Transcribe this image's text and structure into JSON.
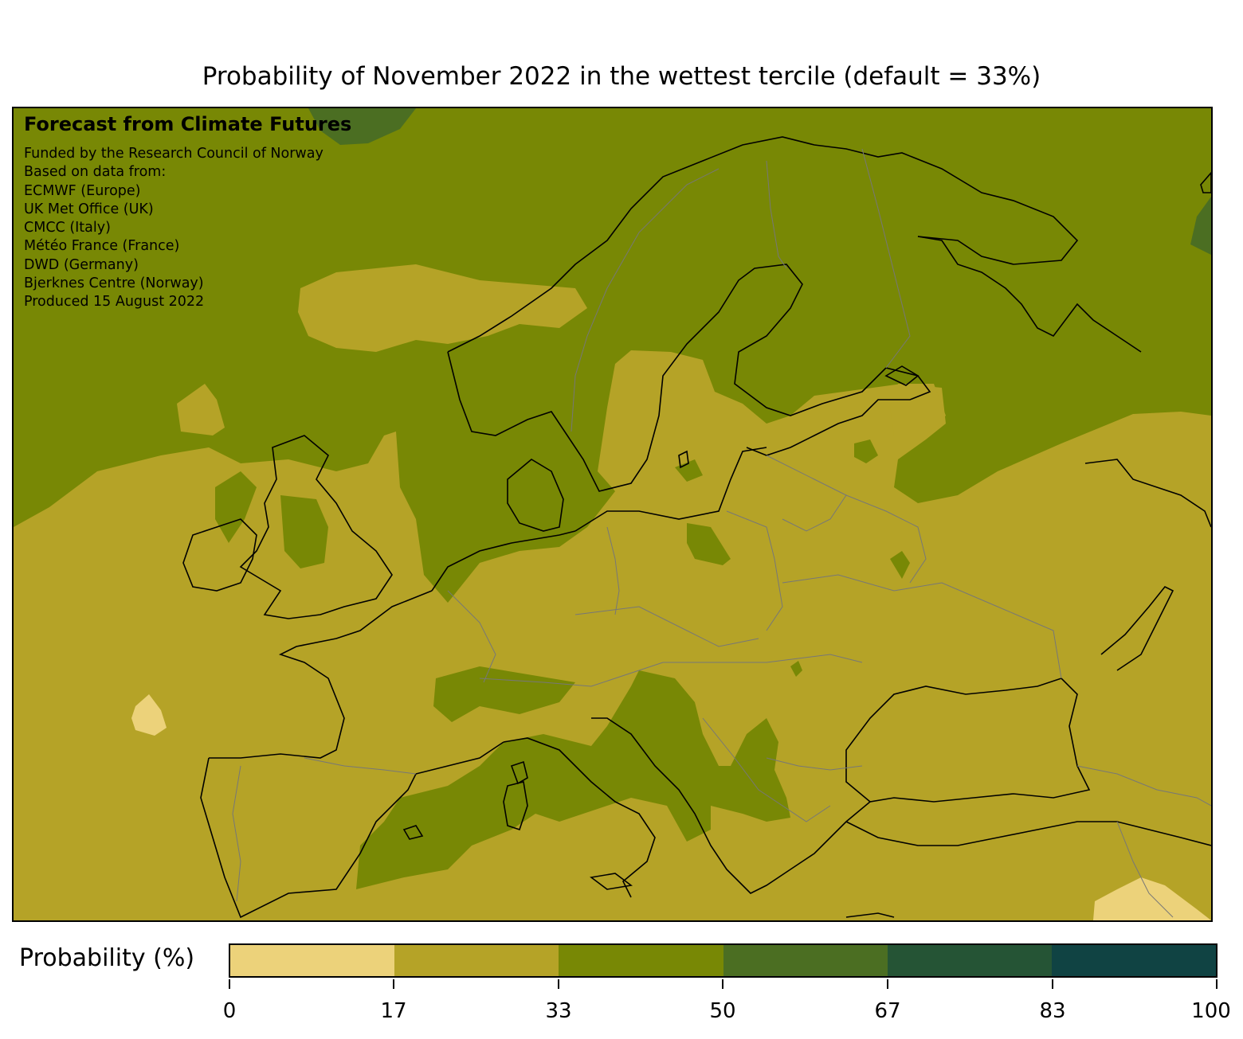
{
  "title": "Probability of November 2022 in the wettest tercile (default = 33%)",
  "info": {
    "heading": "Forecast from Climate Futures",
    "lines": [
      "Funded by the Research Council of Norway",
      "Based on data from:",
      "ECMWF (Europe)",
      "UK Met Office (UK)",
      "CMCC (Italy)",
      "Météo France (France)",
      "DWD (Germany)",
      "Bjerknes Centre (Norway)",
      "Produced 15 August 2022"
    ]
  },
  "colorbar": {
    "label": "Probability (%)",
    "ticks": [
      "0",
      "17",
      "33",
      "50",
      "67",
      "83",
      "100"
    ],
    "colors": [
      "#ecd27a",
      "#b5a327",
      "#788805",
      "#4b6e22",
      "#255435",
      "#104343"
    ]
  },
  "map": {
    "region": "Europe",
    "background_class_color": "#b5a327"
  }
}
